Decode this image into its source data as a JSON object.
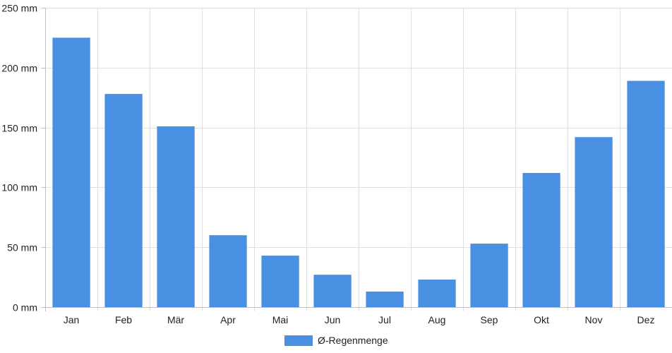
{
  "chart_data": {
    "type": "bar",
    "categories": [
      "Jan",
      "Feb",
      "Mär",
      "Apr",
      "Mai",
      "Jun",
      "Jul",
      "Aug",
      "Sep",
      "Okt",
      "Nov",
      "Dez"
    ],
    "series": [
      {
        "name": "Ø-Regenmenge",
        "values": [
          225,
          178,
          151,
          60,
          43,
          27,
          13,
          23,
          53,
          112,
          142,
          189
        ]
      }
    ],
    "ylim": [
      0,
      250
    ],
    "y_ticks": [
      0,
      50,
      100,
      150,
      200,
      250
    ],
    "y_tick_labels": [
      "0 mm",
      "50 mm",
      "100 mm",
      "150 mm",
      "200 mm",
      "250 mm"
    ],
    "grid": true,
    "legend_position": "bottom",
    "colors": {
      "bar": "#4a90e2",
      "grid": "#e0e0e0",
      "axis": "#bfbfbf"
    }
  }
}
